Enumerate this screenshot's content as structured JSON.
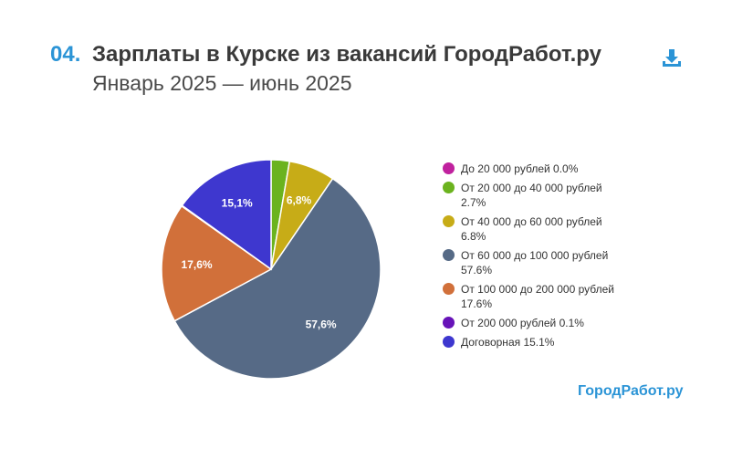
{
  "header": {
    "number": "04.",
    "title": "Зарплаты в Курске из вакансий ГородРабот.ру",
    "subtitle": "Январь 2025 — июнь 2025"
  },
  "icons": {
    "download": "download-icon"
  },
  "brand": "ГородРабот.ру",
  "chart_data": {
    "type": "pie",
    "title": "Зарплаты в Курске из вакансий ГородРабот.ру",
    "subtitle": "Январь 2025 — июнь 2025",
    "legend_position": "right",
    "slices": [
      {
        "legend": "До 20 000 рублей 0.0%",
        "value": 0.0,
        "color": "#c0219e",
        "label": ""
      },
      {
        "legend": "От 20 000 до 40 000 рублей 2.7%",
        "value": 2.7,
        "color": "#6bb31e",
        "label": ""
      },
      {
        "legend": "От 40 000 до 60 000 рублей 6.8%",
        "value": 6.8,
        "color": "#c7ac17",
        "label": "6,8%"
      },
      {
        "legend": "От 60 000 до 100 000 рублей 57.6%",
        "value": 57.6,
        "color": "#566a86",
        "label": "57,6%"
      },
      {
        "legend": "От 100 000 до 200 000 рублей 17.6%",
        "value": 17.6,
        "color": "#d1703a",
        "label": "17,6%"
      },
      {
        "legend": "От 200 000 рублей 0.1%",
        "value": 0.1,
        "color": "#6713b8",
        "label": ""
      },
      {
        "legend": "Договорная 15.1%",
        "value": 15.1,
        "color": "#3e37cf",
        "label": "15,1%"
      }
    ]
  }
}
